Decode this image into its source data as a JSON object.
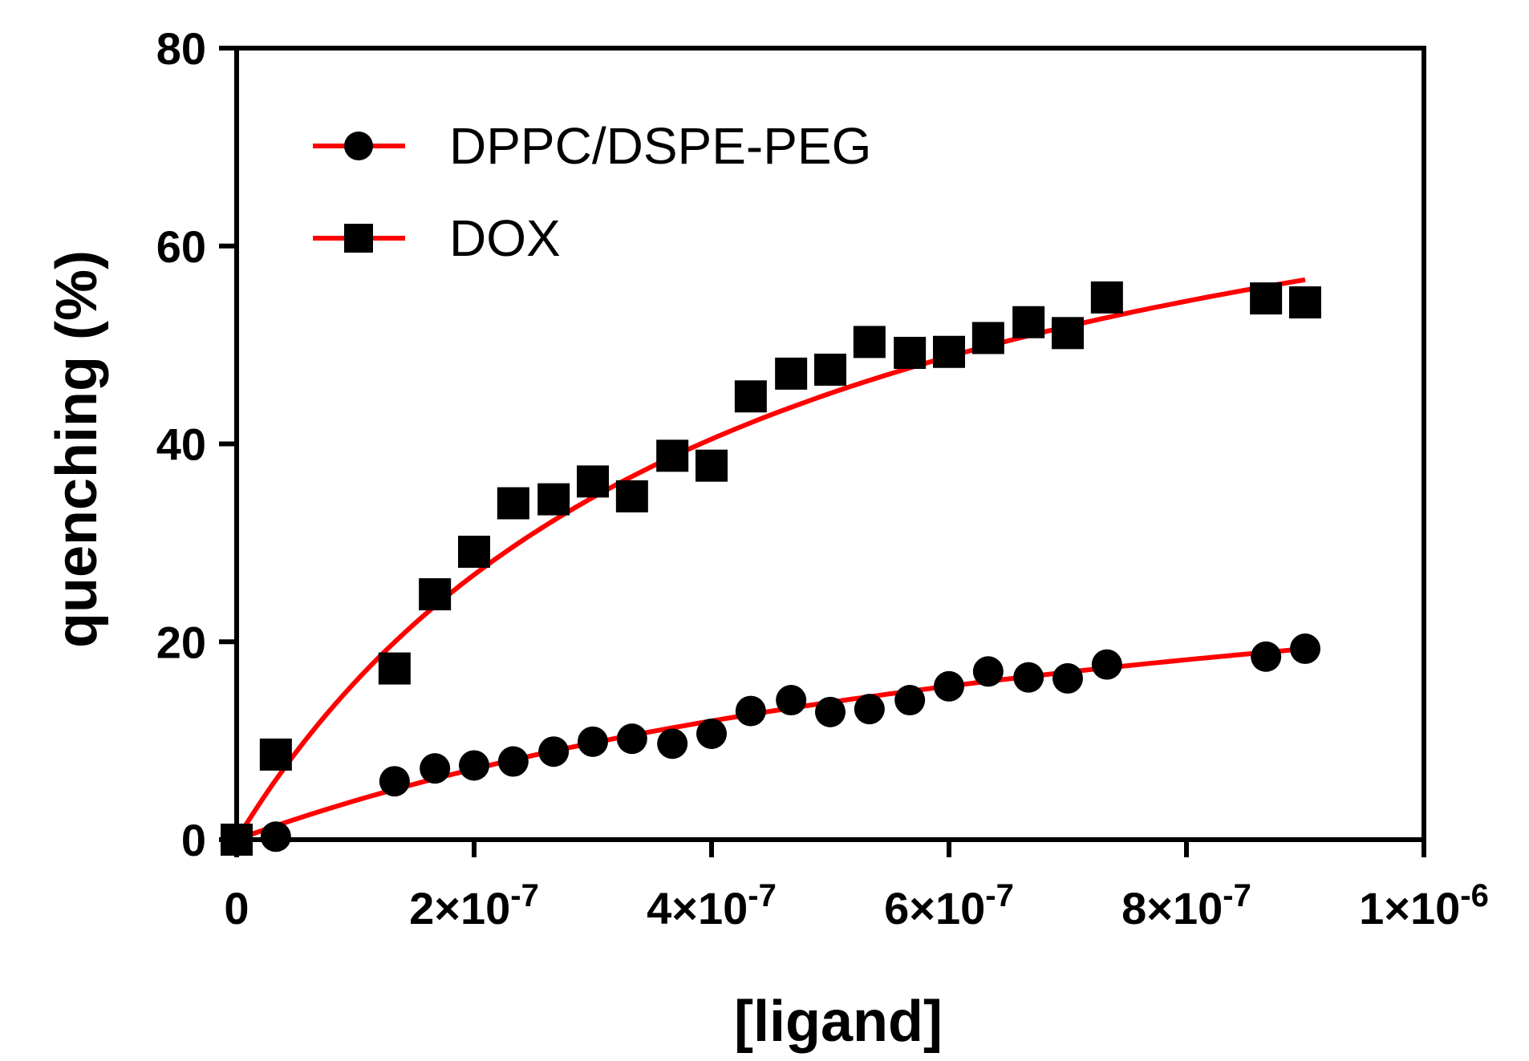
{
  "chart_data": {
    "type": "scatter",
    "title": "",
    "xlabel": "[ligand]",
    "ylabel": "quenching (%)",
    "xlim": [
      0,
      1e-06
    ],
    "ylim": [
      0,
      80
    ],
    "x_ticks": [
      {
        "value": 0,
        "mantissa": "0",
        "exponent": ""
      },
      {
        "value": 2e-07,
        "mantissa": "2×10",
        "exponent": "-7"
      },
      {
        "value": 4e-07,
        "mantissa": "4×10",
        "exponent": "-7"
      },
      {
        "value": 6e-07,
        "mantissa": "6×10",
        "exponent": "-7"
      },
      {
        "value": 8e-07,
        "mantissa": "8×10",
        "exponent": "-7"
      },
      {
        "value": 1e-06,
        "mantissa": "1×10",
        "exponent": "-6"
      }
    ],
    "y_ticks": [
      0,
      20,
      40,
      60,
      80
    ],
    "grid": false,
    "legend_position": "top-left",
    "fit_color": "#ff0000",
    "marker_color": "#000000",
    "series": [
      {
        "name": "DPPC/DSPE-PEG",
        "marker": "circle",
        "points": [
          [
            0,
            0
          ],
          [
            3.3e-08,
            0.3
          ],
          [
            1.33e-07,
            5.9
          ],
          [
            1.67e-07,
            7.2
          ],
          [
            2e-07,
            7.5
          ],
          [
            2.33e-07,
            7.9
          ],
          [
            2.67e-07,
            8.9
          ],
          [
            3e-07,
            9.9
          ],
          [
            3.33e-07,
            10.2
          ],
          [
            3.67e-07,
            9.7
          ],
          [
            4e-07,
            10.7
          ],
          [
            4.33e-07,
            13.0
          ],
          [
            4.67e-07,
            14.1
          ],
          [
            5e-07,
            12.9
          ],
          [
            5.33e-07,
            13.2
          ],
          [
            5.67e-07,
            14.1
          ],
          [
            6e-07,
            15.5
          ],
          [
            6.33e-07,
            17.0
          ],
          [
            6.67e-07,
            16.4
          ],
          [
            7e-07,
            16.3
          ],
          [
            7.33e-07,
            17.7
          ],
          [
            8.67e-07,
            18.5
          ],
          [
            9e-07,
            19.3
          ]
        ],
        "fit": {
          "bmax": 37.5,
          "kd": 8.5e-07
        }
      },
      {
        "name": "DOX",
        "marker": "square",
        "points": [
          [
            0,
            0
          ],
          [
            3.3e-08,
            8.6
          ],
          [
            1.33e-07,
            17.3
          ],
          [
            1.67e-07,
            24.8
          ],
          [
            2e-07,
            29.1
          ],
          [
            2.33e-07,
            34.0
          ],
          [
            2.67e-07,
            34.4
          ],
          [
            3e-07,
            36.2
          ],
          [
            3.33e-07,
            34.7
          ],
          [
            3.67e-07,
            38.8
          ],
          [
            4e-07,
            37.8
          ],
          [
            4.33e-07,
            44.8
          ],
          [
            4.67e-07,
            47.1
          ],
          [
            5e-07,
            47.5
          ],
          [
            5.33e-07,
            50.3
          ],
          [
            5.67e-07,
            49.2
          ],
          [
            6e-07,
            49.3
          ],
          [
            6.33e-07,
            50.7
          ],
          [
            6.67e-07,
            52.3
          ],
          [
            7e-07,
            51.2
          ],
          [
            7.33e-07,
            54.8
          ],
          [
            8.67e-07,
            54.7
          ],
          [
            9e-07,
            54.3
          ]
        ],
        "fit": {
          "bmax": 83.0,
          "kd": 4.2e-07
        }
      }
    ]
  }
}
